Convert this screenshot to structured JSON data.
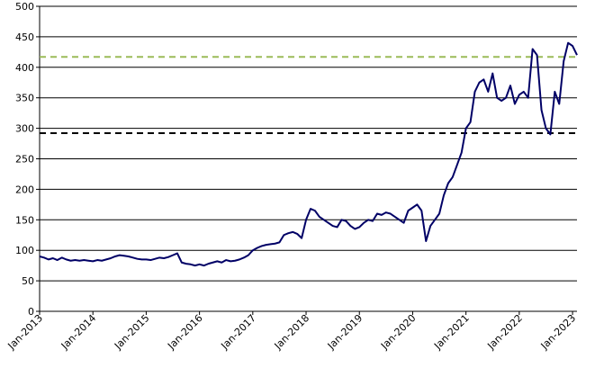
{
  "chart_data": {
    "type": "line",
    "x": [
      "2013-01",
      "2013-02",
      "2013-03",
      "2013-04",
      "2013-05",
      "2013-06",
      "2013-07",
      "2013-08",
      "2013-09",
      "2013-10",
      "2013-11",
      "2013-12",
      "2014-01",
      "2014-02",
      "2014-03",
      "2014-04",
      "2014-05",
      "2014-06",
      "2014-07",
      "2014-08",
      "2014-09",
      "2014-10",
      "2014-11",
      "2014-12",
      "2015-01",
      "2015-02",
      "2015-03",
      "2015-04",
      "2015-05",
      "2015-06",
      "2015-07",
      "2015-08",
      "2015-09",
      "2015-10",
      "2015-11",
      "2015-12",
      "2016-01",
      "2016-02",
      "2016-03",
      "2016-04",
      "2016-05",
      "2016-06",
      "2016-07",
      "2016-08",
      "2016-09",
      "2016-10",
      "2016-11",
      "2016-12",
      "2017-01",
      "2017-02",
      "2017-03",
      "2017-04",
      "2017-05",
      "2017-06",
      "2017-07",
      "2017-08",
      "2017-09",
      "2017-10",
      "2017-11",
      "2017-12",
      "2018-01",
      "2018-02",
      "2018-03",
      "2018-04",
      "2018-05",
      "2018-06",
      "2018-07",
      "2018-08",
      "2018-09",
      "2018-10",
      "2018-11",
      "2018-12",
      "2019-01",
      "2019-02",
      "2019-03",
      "2019-04",
      "2019-05",
      "2019-06",
      "2019-07",
      "2019-08",
      "2019-09",
      "2019-10",
      "2019-11",
      "2019-12",
      "2020-01",
      "2020-02",
      "2020-03",
      "2020-04",
      "2020-05",
      "2020-06",
      "2020-07",
      "2020-08",
      "2020-09",
      "2020-10",
      "2020-11",
      "2020-12",
      "2021-01",
      "2021-02",
      "2021-03",
      "2021-04",
      "2021-05",
      "2021-06",
      "2021-07",
      "2021-08",
      "2021-09",
      "2021-10",
      "2021-11",
      "2021-12",
      "2022-01",
      "2022-02",
      "2022-03",
      "2022-04",
      "2022-05",
      "2022-06",
      "2022-07",
      "2022-08",
      "2022-09",
      "2022-10",
      "2022-11",
      "2022-12",
      "2023-01",
      "2023-02"
    ],
    "series": [
      {
        "color": "#000066",
        "values": [
          90,
          88,
          85,
          87,
          84,
          88,
          85,
          83,
          84,
          83,
          84,
          83,
          82,
          84,
          83,
          85,
          87,
          90,
          92,
          91,
          90,
          88,
          86,
          85,
          85,
          84,
          86,
          88,
          87,
          89,
          92,
          95,
          80,
          78,
          77,
          75,
          77,
          75,
          78,
          80,
          82,
          80,
          84,
          82,
          83,
          85,
          88,
          92,
          100,
          104,
          107,
          109,
          110,
          111,
          113,
          125,
          128,
          130,
          127,
          120,
          150,
          168,
          165,
          155,
          150,
          145,
          140,
          138,
          150,
          148,
          140,
          135,
          138,
          145,
          150,
          148,
          160,
          158,
          162,
          160,
          155,
          150,
          145,
          165,
          170,
          175,
          165,
          115,
          140,
          150,
          160,
          190,
          210,
          220,
          240,
          260,
          300,
          310,
          360,
          375,
          380,
          360,
          390,
          350,
          345,
          350,
          370,
          340,
          355,
          360,
          350,
          430,
          420,
          330,
          300,
          290,
          360,
          340,
          410,
          440,
          435,
          420
        ]
      }
    ],
    "xlim": [
      "2013-01",
      "2023-02"
    ],
    "xticks": [
      {
        "value": "2013-01",
        "label": "Jan-2013"
      },
      {
        "value": "2014-01",
        "label": "Jan-2014"
      },
      {
        "value": "2015-01",
        "label": "Jan-2015"
      },
      {
        "value": "2016-01",
        "label": "Jan-2016"
      },
      {
        "value": "2017-01",
        "label": "Jan-2017"
      },
      {
        "value": "2018-01",
        "label": "Jan-2018"
      },
      {
        "value": "2019-01",
        "label": "Jan-2019"
      },
      {
        "value": "2020-01",
        "label": "Jan-2020"
      },
      {
        "value": "2021-01",
        "label": "Jan-2021"
      },
      {
        "value": "2022-01",
        "label": "Jan-2022"
      },
      {
        "value": "2023-01",
        "label": "Jan-2023"
      }
    ],
    "ylim": [
      0,
      500
    ],
    "yticks": [
      0,
      50,
      100,
      150,
      200,
      250,
      300,
      350,
      400,
      450,
      500
    ],
    "grid": true,
    "reference_lines": [
      {
        "value": 417,
        "color": "#9bbb59"
      },
      {
        "value": 292,
        "color": "#000000"
      }
    ]
  }
}
